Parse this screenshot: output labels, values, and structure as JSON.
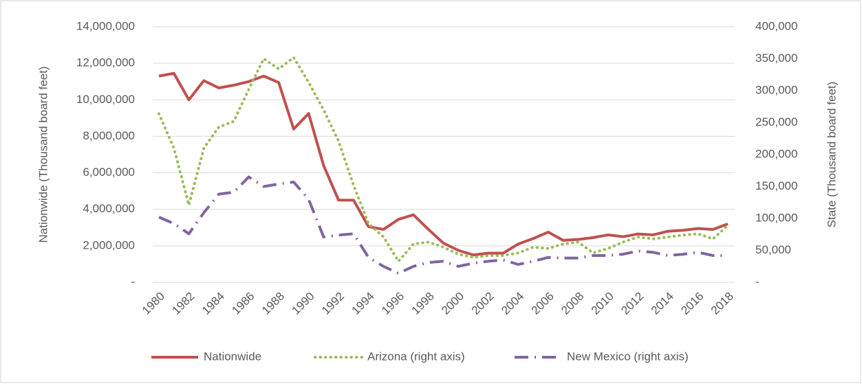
{
  "chart_data": {
    "type": "line",
    "x": [
      1980,
      1981,
      1982,
      1983,
      1984,
      1985,
      1986,
      1987,
      1988,
      1989,
      1990,
      1991,
      1992,
      1993,
      1994,
      1995,
      1996,
      1997,
      1998,
      1999,
      2000,
      2001,
      2002,
      2003,
      2004,
      2005,
      2006,
      2007,
      2008,
      2009,
      2010,
      2011,
      2012,
      2013,
      2014,
      2015,
      2016,
      2017,
      2018
    ],
    "xlim": [
      1980,
      2018
    ],
    "xticks": [
      1980,
      1982,
      1984,
      1986,
      1988,
      1990,
      1992,
      1994,
      1996,
      1998,
      2000,
      2002,
      2004,
      2006,
      2008,
      2010,
      2012,
      2014,
      2016,
      2018
    ],
    "ylabel": "Nationwide (Thousand board feet)",
    "y2label": "State (Thousand board feet)",
    "ylim": [
      0,
      14000000
    ],
    "yticks": [
      {
        "value": 0,
        "label": "-"
      },
      {
        "value": 2000000,
        "label": "2,000,000"
      },
      {
        "value": 4000000,
        "label": "4,000,000"
      },
      {
        "value": 6000000,
        "label": "6,000,000"
      },
      {
        "value": 8000000,
        "label": "8,000,000"
      },
      {
        "value": 10000000,
        "label": "10,000,000"
      },
      {
        "value": 12000000,
        "label": "12,000,000"
      },
      {
        "value": 14000000,
        "label": "14,000,000"
      }
    ],
    "y2lim": [
      0,
      400000
    ],
    "y2ticks": [
      {
        "value": 0,
        "label": "-"
      },
      {
        "value": 50000,
        "label": "50,000"
      },
      {
        "value": 100000,
        "label": "100,000"
      },
      {
        "value": 150000,
        "label": "150,000"
      },
      {
        "value": 200000,
        "label": "200,000"
      },
      {
        "value": 250000,
        "label": "250,000"
      },
      {
        "value": 300000,
        "label": "300,000"
      },
      {
        "value": 350000,
        "label": "350,000"
      },
      {
        "value": 400000,
        "label": "400,000"
      }
    ],
    "grid": true,
    "legend": "bottom",
    "series": [
      {
        "name": "Nationwide",
        "color": "#c0504d",
        "style": "solid",
        "values": [
          11300000,
          11450000,
          10000000,
          11050000,
          10650000,
          10800000,
          11000000,
          11300000,
          10950000,
          8400000,
          9250000,
          6400000,
          4500000,
          4500000,
          3050000,
          2900000,
          3450000,
          3700000,
          2900000,
          2150000,
          1750000,
          1500000,
          1600000,
          1600000,
          2100000,
          2400000,
          2750000,
          2300000,
          2350000,
          2450000,
          2600000,
          2500000,
          2650000,
          2600000,
          2800000,
          2850000,
          2950000,
          2900000,
          3200000
        ]
      },
      {
        "name": "Arizona (right axis)",
        "color": "#9bbb59",
        "style": "dotted",
        "axis": "y2",
        "values": [
          264000,
          210000,
          121000,
          210000,
          243000,
          252000,
          302000,
          350000,
          334000,
          352000,
          313000,
          270000,
          221000,
          152000,
          92000,
          71000,
          33000,
          60000,
          63000,
          55000,
          44000,
          39000,
          42000,
          42000,
          46000,
          55000,
          53000,
          60000,
          63000,
          46000,
          53000,
          63000,
          71000,
          68000,
          71000,
          74000,
          76000,
          68000,
          89000
        ]
      },
      {
        "name": "New Mexico (right axis)",
        "color": "#8064a2",
        "style": "dashdot",
        "axis": "y2",
        "values": [
          102000,
          92000,
          76000,
          109000,
          138000,
          141000,
          165000,
          150000,
          154000,
          157000,
          130000,
          71000,
          74000,
          76000,
          39000,
          25000,
          14000,
          25000,
          31000,
          33000,
          25000,
          30000,
          33000,
          35000,
          28000,
          33000,
          39000,
          38000,
          38000,
          42000,
          42000,
          44000,
          49000,
          47000,
          42000,
          44000,
          47000,
          42000,
          42000
        ]
      }
    ]
  }
}
